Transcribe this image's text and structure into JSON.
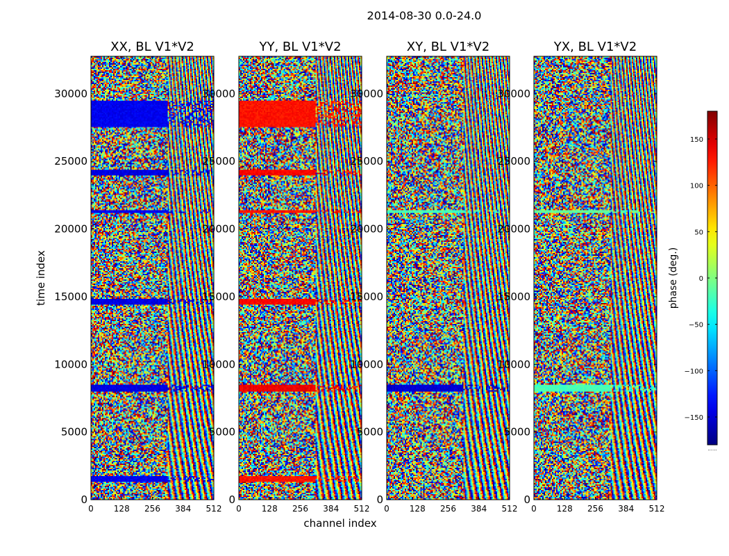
{
  "suptitle": "2014-08-30 0.0-24.0",
  "xlabel": "channel index",
  "ylabel": "time index",
  "colorbar": {
    "label": "phase (deg.)",
    "range": [
      -180,
      180
    ],
    "ticks": [
      150,
      100,
      50,
      0,
      -50,
      -100,
      -150
    ],
    "tick_labels": [
      "150",
      "100",
      "50",
      "0",
      "−50",
      "−100",
      "−150"
    ],
    "colormap": "jet",
    "footer": "......"
  },
  "chart_data": [
    {
      "type": "heatmap",
      "title": "XX, BL V1*V2",
      "xlabel": "channel index",
      "ylabel": "time index",
      "xlim": [
        0,
        512
      ],
      "ylim": [
        0,
        32768
      ],
      "xticks": [
        0,
        128,
        256,
        384,
        512
      ],
      "xtick_labels": [
        "0",
        "128",
        "256",
        "384",
        "512"
      ],
      "yticks": [
        0,
        5000,
        10000,
        15000,
        20000,
        25000,
        30000
      ],
      "ytick_labels": [
        "0",
        "5000",
        "10000",
        "15000",
        "20000",
        "25000",
        "30000"
      ],
      "value_units": "phase (deg.)",
      "value_range": [
        -180,
        180
      ],
      "features": [
        {
          "kind": "band",
          "time_range": [
            27500,
            29500
          ],
          "phase_deg": -140
        },
        {
          "kind": "band",
          "time_range": [
            24000,
            24400
          ],
          "phase_deg": -145
        },
        {
          "kind": "band",
          "time_range": [
            21200,
            21400
          ],
          "phase_deg": -140
        },
        {
          "kind": "band",
          "time_range": [
            14400,
            14800
          ],
          "phase_deg": -145
        },
        {
          "kind": "band",
          "time_range": [
            8000,
            8500
          ],
          "phase_deg": -145
        },
        {
          "kind": "band",
          "time_range": [
            1300,
            1700
          ],
          "phase_deg": -140
        }
      ]
    },
    {
      "type": "heatmap",
      "title": "YY, BL V1*V2",
      "xlabel": "channel index",
      "ylabel": "time index",
      "xlim": [
        0,
        512
      ],
      "ylim": [
        0,
        32768
      ],
      "xticks": [
        0,
        128,
        256,
        384,
        512
      ],
      "xtick_labels": [
        "0",
        "128",
        "256",
        "384",
        "512"
      ],
      "yticks": [
        0,
        5000,
        10000,
        15000,
        20000,
        25000,
        30000
      ],
      "ytick_labels": [
        "0",
        "5000",
        "10000",
        "15000",
        "20000",
        "25000",
        "30000"
      ],
      "value_units": "phase (deg.)",
      "value_range": [
        -180,
        180
      ],
      "features": [
        {
          "kind": "band",
          "time_range": [
            27500,
            29500
          ],
          "phase_deg": 130
        },
        {
          "kind": "band",
          "time_range": [
            24000,
            24400
          ],
          "phase_deg": 135
        },
        {
          "kind": "band",
          "time_range": [
            21200,
            21400
          ],
          "phase_deg": 130
        },
        {
          "kind": "band",
          "time_range": [
            14400,
            14800
          ],
          "phase_deg": 135
        },
        {
          "kind": "band",
          "time_range": [
            8000,
            8500
          ],
          "phase_deg": 140
        },
        {
          "kind": "band",
          "time_range": [
            1300,
            1700
          ],
          "phase_deg": 130
        }
      ]
    },
    {
      "type": "heatmap",
      "title": "XY, BL V1*V2",
      "xlabel": "channel index",
      "ylabel": "time index",
      "xlim": [
        0,
        512
      ],
      "ylim": [
        0,
        32768
      ],
      "xticks": [
        0,
        128,
        256,
        384,
        512
      ],
      "xtick_labels": [
        "0",
        "128",
        "256",
        "384",
        "512"
      ],
      "yticks": [
        0,
        5000,
        10000,
        15000,
        20000,
        25000,
        30000
      ],
      "ytick_labels": [
        "0",
        "5000",
        "10000",
        "15000",
        "20000",
        "25000",
        "30000"
      ],
      "value_units": "phase (deg.)",
      "value_range": [
        -180,
        180
      ],
      "features": [
        {
          "kind": "band",
          "time_range": [
            21200,
            21400
          ],
          "phase_deg": -20
        },
        {
          "kind": "band",
          "time_range": [
            8000,
            8500
          ],
          "phase_deg": -150
        }
      ]
    },
    {
      "type": "heatmap",
      "title": "YX, BL V1*V2",
      "xlabel": "channel index",
      "ylabel": "time index",
      "xlim": [
        0,
        512
      ],
      "ylim": [
        0,
        32768
      ],
      "xticks": [
        0,
        128,
        256,
        384,
        512
      ],
      "xtick_labels": [
        "0",
        "128",
        "256",
        "384",
        "512"
      ],
      "yticks": [
        0,
        5000,
        10000,
        15000,
        20000,
        25000,
        30000
      ],
      "ytick_labels": [
        "0",
        "5000",
        "10000",
        "15000",
        "20000",
        "25000",
        "30000"
      ],
      "value_units": "phase (deg.)",
      "value_range": [
        -180,
        180
      ],
      "features": [
        {
          "kind": "band",
          "time_range": [
            21200,
            21400
          ],
          "phase_deg": -10
        },
        {
          "kind": "band",
          "time_range": [
            8000,
            8500
          ],
          "phase_deg": -20
        }
      ]
    }
  ]
}
